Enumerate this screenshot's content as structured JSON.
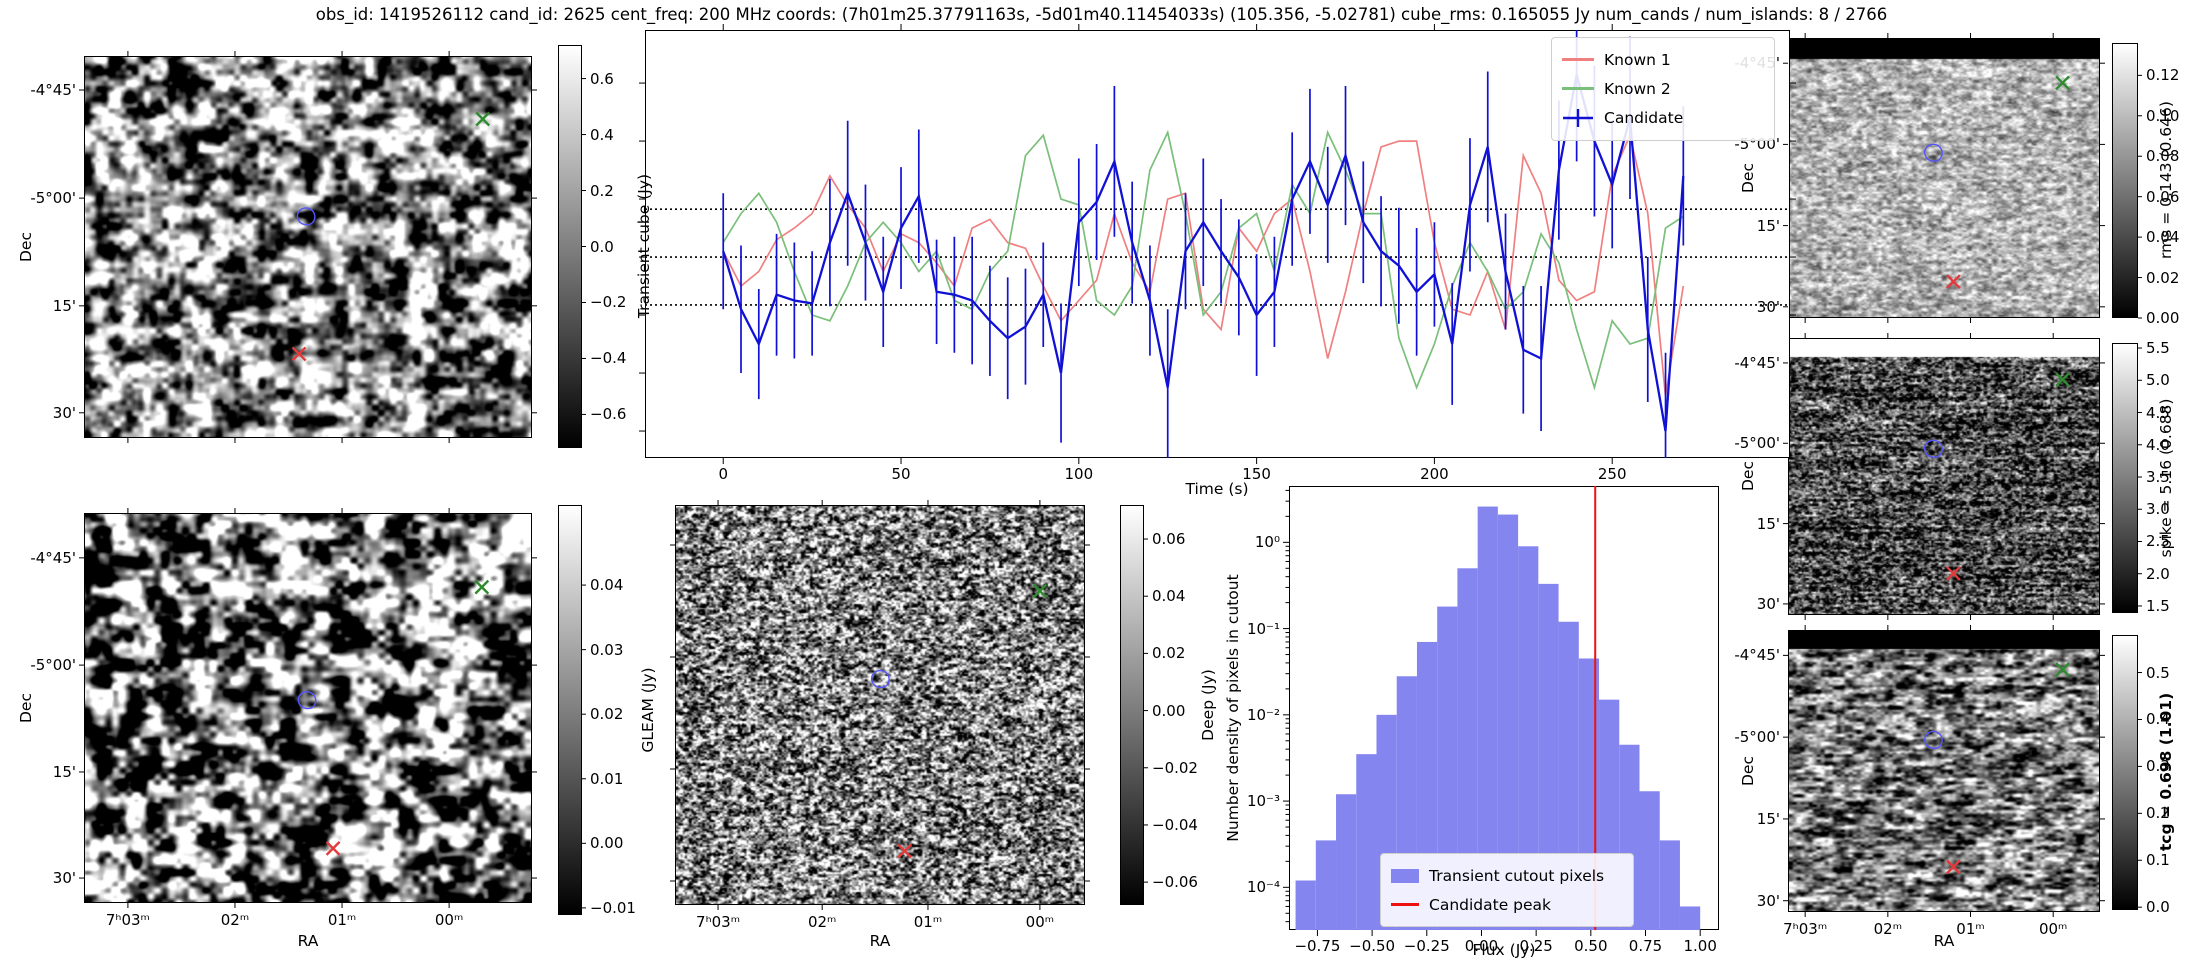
{
  "title": "obs_id: 1419526112 cand_id: 2625 cent_freq: 200 MHz coords: (7h01m25.37791163s, -5d01m40.11454033s) (105.356, -5.02781) cube_rms: 0.165055 Jy num_cands / num_islands: 8 / 2766",
  "colors": {
    "known1": "#f08080",
    "known2": "#7abf7a",
    "candidate": "#1111d6",
    "hist_bar": "#8585f0",
    "candidate_peak": "#ee1111",
    "contour": "#5555ff",
    "marker_green": "#2e8b2e",
    "marker_red": "#e23b3b",
    "dotted_line": "#000000"
  },
  "panels": {
    "transient": {
      "ylabel": "Dec",
      "dec_ticks": [
        "-4°45'",
        "-5°00'",
        "15'",
        "30'"
      ],
      "colorbar": {
        "label": "Transient cube (Jy)",
        "vmin": -0.72,
        "vmax": 0.72,
        "ticks": [
          {
            "v": 0.6,
            "t": "0.6"
          },
          {
            "v": 0.4,
            "t": "0.4"
          },
          {
            "v": 0.2,
            "t": "0.2"
          },
          {
            "v": 0.0,
            "t": "0.0"
          },
          {
            "v": -0.2,
            "t": "−0.2"
          },
          {
            "v": -0.4,
            "t": "−0.4"
          },
          {
            "v": -0.6,
            "t": "−0.6"
          }
        ]
      },
      "markers": {
        "known2_x": [
          0.89,
          0.165
        ],
        "candidate_contour": [
          0.495,
          0.42
        ],
        "known1_x": [
          0.48,
          0.78
        ]
      }
    },
    "gleam": {
      "ylabel": "Dec",
      "xlabel": "RA",
      "dec_ticks": [
        "-4°45'",
        "-5°00'",
        "15'",
        "30'"
      ],
      "ra_ticks": [
        "7ʰ03ᵐ",
        "02ᵐ",
        "01ᵐ",
        "00ᵐ"
      ],
      "colorbar": {
        "label": "GLEAM (Jy)",
        "vmin": -0.0111,
        "vmax": 0.0524,
        "ticks": [
          {
            "v": 0.04,
            "t": "0.04"
          },
          {
            "v": 0.03,
            "t": "0.03"
          },
          {
            "v": 0.02,
            "t": "0.02"
          },
          {
            "v": 0.01,
            "t": "0.01"
          },
          {
            "v": 0.0,
            "t": "0.00"
          },
          {
            "v": -0.01,
            "t": "−0.01"
          }
        ]
      },
      "markers": {
        "known2_x": [
          0.888,
          0.19
        ],
        "candidate_contour": [
          0.497,
          0.48
        ],
        "known1_x": [
          0.556,
          0.86
        ]
      }
    },
    "deep": {
      "xlabel": "RA",
      "ra_ticks": [
        "7ʰ03ᵐ",
        "02ᵐ",
        "01ᵐ",
        "00ᵐ"
      ],
      "colorbar": {
        "label": "Deep (Jy)",
        "vmin": -0.068,
        "vmax": 0.0719,
        "ticks": [
          {
            "v": 0.06,
            "t": "0.06"
          },
          {
            "v": 0.04,
            "t": "0.04"
          },
          {
            "v": 0.02,
            "t": "0.02"
          },
          {
            "v": 0.0,
            "t": "0.00"
          },
          {
            "v": -0.02,
            "t": "−0.02"
          },
          {
            "v": -0.04,
            "t": "−0.04"
          },
          {
            "v": -0.06,
            "t": "−0.06"
          }
        ]
      },
      "markers": {
        "known2_x": [
          0.89,
          0.215
        ],
        "candidate_contour": [
          0.5,
          0.435
        ],
        "known1_x": [
          0.56,
          0.865
        ]
      }
    },
    "rms": {
      "ylabel": "Dec",
      "dec_ticks": [
        "-4°45'",
        "-5°00'",
        "15'",
        "30'"
      ],
      "colorbar": {
        "label": "rms = 0.143 (0.646)",
        "vmin": 0.0,
        "vmax": 0.136,
        "ticks": [
          {
            "v": 0.12,
            "t": "0.12"
          },
          {
            "v": 0.1,
            "t": "0.10"
          },
          {
            "v": 0.08,
            "t": "0.08"
          },
          {
            "v": 0.06,
            "t": "0.06"
          },
          {
            "v": 0.04,
            "t": "0.04"
          },
          {
            "v": 0.02,
            "t": "0.02"
          },
          {
            "v": 0.0,
            "t": "0.00"
          }
        ]
      },
      "markers": {
        "known2_x": [
          0.88,
          0.16
        ],
        "candidate_contour": [
          0.465,
          0.41
        ],
        "known1_x": [
          0.53,
          0.87
        ]
      }
    },
    "spike": {
      "ylabel": "Dec",
      "dec_ticks": [
        "-4°45'",
        "-5°00'",
        "15'",
        "30'"
      ],
      "colorbar": {
        "label": "spike = 5.16 (0.688)",
        "vmin": 1.391,
        "vmax": 5.578,
        "ticks": [
          {
            "v": 5.5,
            "t": "5.5"
          },
          {
            "v": 5.0,
            "t": "5.0"
          },
          {
            "v": 4.5,
            "t": "4.5"
          },
          {
            "v": 4.0,
            "t": "4.0"
          },
          {
            "v": 3.5,
            "t": "3.5"
          },
          {
            "v": 3.0,
            "t": "3.0"
          },
          {
            "v": 2.5,
            "t": "2.5"
          },
          {
            "v": 2.0,
            "t": "2.0"
          },
          {
            "v": 1.5,
            "t": "1.5"
          }
        ]
      },
      "markers": {
        "known2_x": [
          0.88,
          0.15
        ],
        "candidate_contour": [
          0.465,
          0.4
        ],
        "known1_x": [
          0.53,
          0.85
        ]
      }
    },
    "tcg": {
      "ylabel": "Dec",
      "xlabel": "RA",
      "dec_ticks": [
        "-4°45'",
        "-5°00'",
        "15'",
        "30'"
      ],
      "ra_ticks": [
        "7ʰ03ᵐ",
        "02ᵐ",
        "01ᵐ",
        "00ᵐ"
      ],
      "colorbar": {
        "label": "tcg = 0.698 (1.01)",
        "vmin": -0.006,
        "vmax": 0.58,
        "ticks": [
          {
            "v": 0.5,
            "t": "0.5"
          },
          {
            "v": 0.4,
            "t": "0.4"
          },
          {
            "v": 0.3,
            "t": "0.3"
          },
          {
            "v": 0.2,
            "t": "0.2"
          },
          {
            "v": 0.1,
            "t": "0.1"
          },
          {
            "v": 0.0,
            "t": "0.0"
          }
        ]
      },
      "markers": {
        "known2_x": [
          0.88,
          0.14
        ],
        "candidate_contour": [
          0.465,
          0.39
        ],
        "known1_x": [
          0.53,
          0.84
        ]
      }
    }
  },
  "chart_data": [
    {
      "type": "line",
      "title": "",
      "xlabel": "Time (s)",
      "ylabel": "Transient cube (Jy)",
      "xlim": [
        -22,
        300
      ],
      "ylim": [
        -0.693,
        0.783
      ],
      "xticks": [
        0,
        50,
        100,
        150,
        200,
        250
      ],
      "ytick_values": [
        0.6,
        0.4,
        0.2,
        0.0,
        -0.2,
        -0.4,
        -0.6
      ],
      "hlines": [
        0.165055,
        0.0,
        -0.165055
      ],
      "x_start": 0,
      "x_step": 5,
      "n_points": 55,
      "legend_position": "upper right",
      "series": [
        {
          "name": "Known 1",
          "color": "#f08080",
          "values": [
            0.02,
            -0.1,
            -0.05,
            0.06,
            0.1,
            0.15,
            0.28,
            0.18,
            0.1,
            -0.05,
            0.08,
            0.05,
            -0.02,
            -0.1,
            0.1,
            0.13,
            0.05,
            0.03,
            -0.1,
            -0.22,
            -0.15,
            -0.08,
            0.15,
            -0.02,
            -0.12,
            0.2,
            0.22,
            -0.18,
            -0.25,
            0.1,
            0.02,
            0.15,
            0.2,
            -0.05,
            -0.35,
            -0.12,
            0.15,
            0.38,
            0.4,
            0.4,
            0.05,
            -0.18,
            -0.2,
            -0.05,
            -0.25,
            0.35,
            0.22,
            -0.08,
            -0.15,
            -0.12,
            0.28,
            0.42,
            0.15,
            -0.48,
            -0.1
          ]
        },
        {
          "name": "Known 2",
          "color": "#7abf7a",
          "values": [
            0.05,
            0.15,
            0.22,
            0.12,
            -0.05,
            -0.2,
            -0.22,
            -0.1,
            0.05,
            0.12,
            0.05,
            -0.05,
            0.02,
            -0.15,
            -0.18,
            -0.05,
            0.02,
            0.35,
            0.42,
            0.2,
            0.18,
            -0.15,
            -0.2,
            -0.1,
            0.3,
            0.43,
            0.15,
            -0.2,
            -0.12,
            0.1,
            0.15,
            -0.05,
            0.25,
            0.15,
            0.43,
            0.3,
            0.15,
            0.15,
            -0.28,
            -0.45,
            -0.3,
            -0.1,
            0.05,
            -0.05,
            -0.18,
            -0.12,
            0.08,
            -0.02,
            -0.25,
            -0.45,
            -0.22,
            -0.3,
            -0.28,
            0.1,
            0.14
          ]
        },
        {
          "name": "Candidate",
          "color": "#1111d6",
          "values": [
            0.02,
            -0.18,
            -0.3,
            -0.13,
            -0.15,
            -0.16,
            0.05,
            0.22,
            0.05,
            -0.12,
            0.1,
            0.21,
            -0.12,
            -0.13,
            -0.15,
            -0.22,
            -0.28,
            -0.24,
            -0.13,
            -0.4,
            0.12,
            0.19,
            0.33,
            0.05,
            -0.15,
            -0.45,
            0.02,
            0.12,
            0.02,
            -0.07,
            -0.2,
            -0.12,
            0.2,
            0.33,
            0.18,
            0.35,
            0.12,
            0.02,
            -0.03,
            -0.12,
            -0.06,
            -0.3,
            0.18,
            0.38,
            -0.05,
            -0.32,
            -0.35,
            0.3,
            0.63,
            0.4,
            0.25,
            0.48,
            -0.25,
            -0.6,
            0.28
          ],
          "errors": [
            0.2,
            0.22,
            0.19,
            0.21,
            0.2,
            0.18,
            0.22,
            0.25,
            0.2,
            0.19,
            0.21,
            0.23,
            0.18,
            0.2,
            0.22,
            0.19,
            0.21,
            0.2,
            0.18,
            0.24,
            0.22,
            0.2,
            0.26,
            0.21,
            0.19,
            0.27,
            0.2,
            0.22,
            0.18,
            0.2,
            0.21,
            0.19,
            0.23,
            0.25,
            0.2,
            0.24,
            0.21,
            0.19,
            0.2,
            0.22,
            0.18,
            0.21,
            0.23,
            0.26,
            0.2,
            0.22,
            0.25,
            0.24,
            0.3,
            0.26,
            0.22,
            0.28,
            0.25,
            0.27,
            0.24
          ]
        }
      ]
    },
    {
      "type": "bar",
      "title": "",
      "xlabel": "Flux (Jy)",
      "ylabel": "Number density of pixels in cutout",
      "yscale": "log",
      "xlim": [
        -0.88,
        1.086
      ],
      "ylim": [
        3.2e-05,
        4.5
      ],
      "bin_start": -0.85,
      "bin_width": 0.0925,
      "densities": [
        0.00012,
        0.00035,
        0.0012,
        0.0035,
        0.01,
        0.028,
        0.07,
        0.18,
        0.5,
        2.6,
        2.1,
        0.9,
        0.33,
        0.12,
        0.045,
        0.015,
        0.0045,
        0.0013,
        0.00035,
        6e-05
      ],
      "candidate_peak_flux": 0.52,
      "xticks": [
        -0.75,
        -0.5,
        -0.25,
        0.0,
        0.25,
        0.5,
        0.75,
        1.0
      ],
      "xtick_labels": [
        "−0.75",
        "−0.50",
        "−0.25",
        "0.00",
        "0.25",
        "0.50",
        "0.75",
        "1.00"
      ],
      "ytick_labels": [
        "10⁰",
        "10⁻¹",
        "10⁻²",
        "10⁻³",
        "10⁻⁴"
      ],
      "legend": [
        "Transient cutout pixels",
        "Candidate peak"
      ],
      "legend_position": "lower center"
    }
  ]
}
